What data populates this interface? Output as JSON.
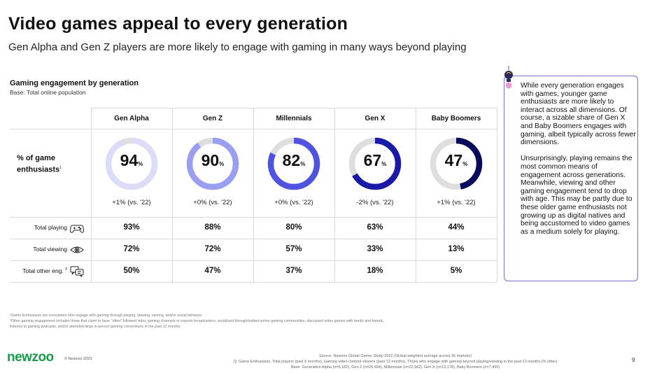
{
  "header": {
    "title": "Video games appeal to every generation",
    "subtitle": "Gen Alpha and Gen Z players are more likely to engage with gaming in many ways beyond playing"
  },
  "section": {
    "title": "Gaming engagement by generation",
    "base": "Base: Total online population"
  },
  "chart_data": {
    "type": "table",
    "title": "Gaming engagement by generation",
    "categories": [
      "Gen Alpha",
      "Gen Z",
      "Millennials",
      "Gen X",
      "Baby Boomers"
    ],
    "enthusiasts": {
      "label": "% of game enthusiasts",
      "footnote_mark": "1",
      "values": [
        94,
        90,
        82,
        67,
        47
      ],
      "unit": "%",
      "changes": [
        "+1% (vs. '22)",
        "+0% (vs. '22)",
        "+0% (vs. '22)",
        "-2% (vs. '22)",
        "+1% (vs. '22)"
      ],
      "colors": [
        "#dcdcf8",
        "#9a9ef0",
        "#4f54e0",
        "#1a1aa8",
        "#0a0a5c"
      ],
      "track_color": "#dedede"
    },
    "rows": [
      {
        "label": "Total playing",
        "icon": "gamepad-icon",
        "footnote_mark": "",
        "values": [
          "93%",
          "88%",
          "80%",
          "63%",
          "44%"
        ]
      },
      {
        "label": "Total viewing",
        "icon": "eye-icon",
        "footnote_mark": "",
        "values": [
          "72%",
          "72%",
          "57%",
          "33%",
          "13%"
        ]
      },
      {
        "label": "Total other eng.",
        "icon": "chat-icon",
        "footnote_mark": "2",
        "values": [
          "50%",
          "47%",
          "37%",
          "18%",
          "5%"
        ]
      }
    ]
  },
  "note": {
    "icon": "lightbulb-icon",
    "text": "While every generation engages with games, younger game enthusiasts are more likely to interact across all dimensions. Of course, a sizable share of Gen X and Baby Boomers engages with gaming, albeit typically across fewer dimensions.\n\nUnsurprisingly, playing remains the most common means of engagement across generations. Meanwhile, viewing and other gaming engagement tend to drop with age. This may be partly due to these older game enthusiasts not growing up as digital natives and being accustomed to video games as a medium solely for playing.",
    "border_color": "#7b6bd4"
  },
  "footnotes": [
    "¹Game Enthusiasts are consumers who engage with gaming through playing, viewing, owning, and/or social behavior",
    "²Other gaming engagement includes those that claim to have \"often\" followed video gaming channels or esports broadcasters, socialized through/visited online gaming communities, discussed video games with family and friends, listened to gaming podcasts, and/or attended large in-person gaming conventions in the past 12 months"
  ],
  "footer": {
    "logo": "newzoo",
    "logo_color": "#1a9b4b",
    "copyright": "© Newzoo 2023",
    "source_lines": [
      "Source: Newzoo Global Gamer Study 2022 (Global weighted average across 36 markets)",
      "Q. Game Enthusiasts, Total players (past 6 months), Gaming video content viewers (past 12 months), Those who engage with gaming beyond playing/viewing in the past 12 months (% often)",
      "Base: Generation Alpha (n=5,182), Gen Z (n=25,494), Millennials (n=22,942), Gen X (n=13,178), Baby Boomers (n=7,499)"
    ],
    "page_number": "9"
  }
}
